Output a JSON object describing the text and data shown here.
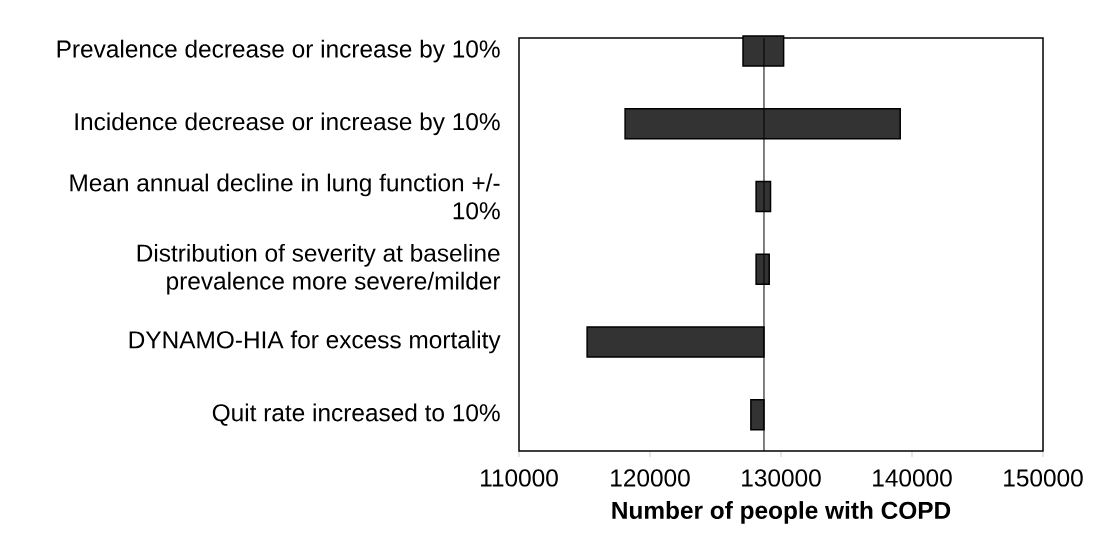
{
  "chart_data": {
    "type": "bar",
    "orientation": "horizontal",
    "xlabel": "Number of people with COPD",
    "categories": [
      "Prevalence decrease or increase by 10%",
      "Incidence decrease or increase by 10%",
      "Mean annual decline in lung function +/- 10%",
      "Distribution of severity at baseline prevalence more severe/milder",
      "DYNAMO-HIA for excess mortality",
      "Quit rate increased to 10%"
    ],
    "base": [
      127100,
      118100,
      128100,
      128100,
      115200,
      127700
    ],
    "values": [
      3100,
      21000,
      1100,
      1000,
      13500,
      1000
    ],
    "color": "#333333",
    "xlim": [
      110000,
      150000
    ],
    "xticks": [
      110000,
      120000,
      130000,
      140000,
      150000
    ],
    "ref_lines": [
      {
        "axis": "x",
        "value": 128700,
        "color": "#000000"
      }
    ],
    "grid": false
  }
}
